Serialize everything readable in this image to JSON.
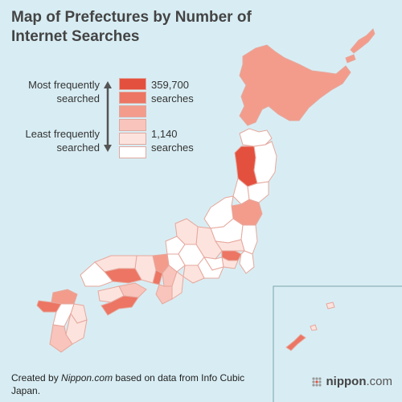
{
  "title": "Map of Prefectures by Number of Internet Searches",
  "legend": {
    "most_label": "Most frequently searched",
    "least_label": "Least frequently searched",
    "max_value": "359,700",
    "max_unit": "searches",
    "min_value": "1,140",
    "min_unit": "searches",
    "swatch_colors": [
      "#e4503e",
      "#ec7563",
      "#f39c8c",
      "#f8c4bb",
      "#fce3de",
      "#ffffff"
    ]
  },
  "credit": {
    "prefix": "Created by ",
    "source": "Nippon.com",
    "suffix": " based on data from Info Cubic Japan."
  },
  "brand": {
    "name": "nippon",
    "suffix": ".com",
    "icon": "nippon-dots-icon"
  },
  "colors": {
    "sea": "#d8edf3",
    "border": "#e6a79c",
    "level1": "#e4503e",
    "level2": "#ec7563",
    "level3": "#f39c8c",
    "level4": "#f8c4bb",
    "level5": "#fce3de",
    "level6": "#ffffff"
  }
}
